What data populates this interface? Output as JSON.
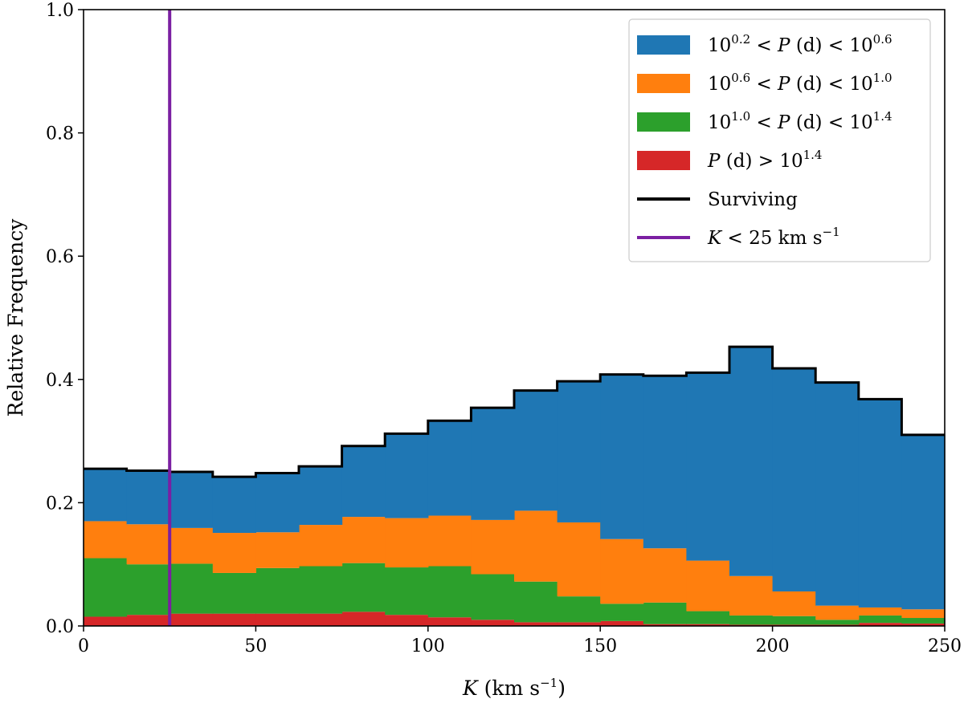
{
  "chart_data": {
    "type": "bar",
    "stacked": true,
    "histogram": true,
    "bin_edges": [
      0,
      12.5,
      25,
      37.5,
      50,
      62.5,
      75,
      87.5,
      100,
      112.5,
      125,
      137.5,
      150,
      162.5,
      175,
      187.5,
      200,
      212.5,
      225,
      237.5,
      250
    ],
    "series": [
      {
        "name_parts": [
          "10",
          "0.2",
          " < ",
          "P",
          " (d) < 10",
          "0.6"
        ],
        "color": "#1f77b4",
        "values": [
          0.085,
          0.087,
          0.091,
          0.091,
          0.096,
          0.095,
          0.115,
          0.137,
          0.154,
          0.182,
          0.195,
          0.229,
          0.267,
          0.28,
          0.305,
          0.372,
          0.362,
          0.362,
          0.338,
          0.283
        ]
      },
      {
        "name_parts": [
          "10",
          "0.6",
          " < ",
          "P",
          " (d) < 10",
          "1.0"
        ],
        "color": "#ff7f0e",
        "values": [
          0.06,
          0.065,
          0.058,
          0.065,
          0.058,
          0.067,
          0.075,
          0.08,
          0.082,
          0.088,
          0.115,
          0.12,
          0.105,
          0.088,
          0.082,
          0.064,
          0.04,
          0.023,
          0.013,
          0.014
        ]
      },
      {
        "name_parts": [
          "10",
          "1.0",
          " < ",
          "P",
          " (d) < 10",
          "1.4"
        ],
        "color": "#2ca02c",
        "values": [
          0.095,
          0.082,
          0.081,
          0.066,
          0.074,
          0.077,
          0.079,
          0.077,
          0.083,
          0.074,
          0.066,
          0.042,
          0.028,
          0.035,
          0.021,
          0.015,
          0.014,
          0.008,
          0.012,
          0.009
        ]
      },
      {
        "name_parts": [
          "",
          "",
          "",
          "P",
          " (d) > 10",
          "1.4"
        ],
        "color": "#d62728",
        "values": [
          0.015,
          0.018,
          0.02,
          0.02,
          0.02,
          0.02,
          0.023,
          0.018,
          0.014,
          0.01,
          0.006,
          0.006,
          0.008,
          0.003,
          0.003,
          0.002,
          0.002,
          0.002,
          0.005,
          0.004
        ]
      }
    ],
    "surviving": {
      "name": "Surviving",
      "color": "#000000",
      "values": [
        0.255,
        0.252,
        0.25,
        0.242,
        0.248,
        0.259,
        0.292,
        0.312,
        0.333,
        0.354,
        0.382,
        0.397,
        0.408,
        0.406,
        0.411,
        0.453,
        0.418,
        0.395,
        0.368,
        0.31
      ]
    },
    "threshold": {
      "x": 25,
      "color": "#7b1fa2",
      "label_parts": [
        "K",
        " < 25 km s",
        "−1"
      ]
    },
    "xlabel_parts": [
      "K",
      " (km s",
      "−1",
      ")"
    ],
    "ylabel": "Relative Frequency",
    "xlim": [
      0,
      250
    ],
    "ylim": [
      0,
      1.0
    ],
    "xticks": [
      0,
      50,
      100,
      150,
      200,
      250
    ],
    "yticks": [
      0.0,
      0.2,
      0.4,
      0.6,
      0.8,
      1.0
    ],
    "ytick_labels": [
      "0.0",
      "0.2",
      "0.4",
      "0.6",
      "0.8",
      "1.0"
    ],
    "grid": false,
    "legend_position": "top-right"
  }
}
